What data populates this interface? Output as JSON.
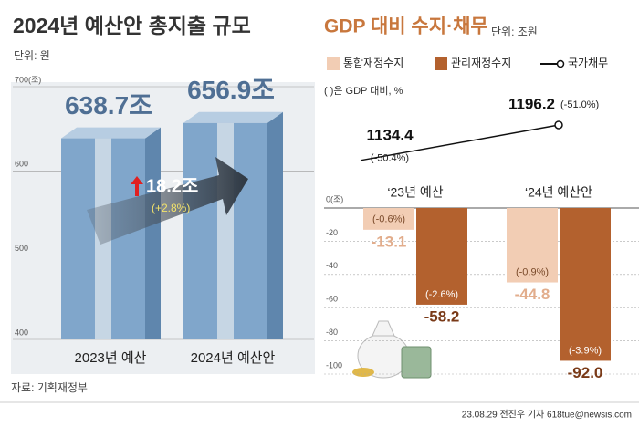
{
  "chart_data": [
    {
      "type": "bar",
      "title": "2024년 예산안 총지출 규모",
      "unit": "단위: 원",
      "categories": [
        "2023년 예산",
        "2024년 예산안"
      ],
      "values": [
        638.7,
        656.9
      ],
      "value_labels": [
        "638.7조",
        "656.9조"
      ],
      "color": "#80a6cb",
      "ylim": [
        400,
        700
      ],
      "yticks": [
        400,
        500,
        600,
        {
          "value": 700,
          "label": "700(조)"
        }
      ],
      "grid": true,
      "annotations": [
        "18.2조",
        "(+2.8%)"
      ],
      "source": "자료: 기획재정부"
    },
    {
      "type": "bar",
      "title": "GDP 대비 수지·채무",
      "unit": "단위: 조원",
      "subtitle": "( )은 GDP 대비, %",
      "categories": [
        "‘23년 예산",
        "‘24년 예산안"
      ],
      "series": [
        {
          "name": "통합재정수지",
          "color": "#f2cdb4",
          "values": [
            -13.1,
            -44.8
          ],
          "value_labels": [
            "-13.1",
            "-44.8"
          ],
          "ratio_labels": [
            "(-0.6%)",
            "(-0.9%)"
          ]
        },
        {
          "name": "관리재정수지",
          "color": "#b3612e",
          "values": [
            -58.2,
            -92.0
          ],
          "value_labels": [
            "-58.2",
            "-92.0"
          ],
          "ratio_labels": [
            "(-2.6%)",
            "(-3.9%)"
          ]
        },
        {
          "name": "국가채무",
          "type": "line",
          "axis": "y2",
          "color": "#111111",
          "values": [
            1134.4,
            1196.2
          ],
          "ratio_labels": [
            "(-50.4%)",
            "(-51.0%)"
          ]
        }
      ],
      "ylim": [
        -100,
        0
      ],
      "yticks": [
        {
          "value": 0,
          "label": "0(조)"
        },
        -20,
        -40,
        -60,
        -80,
        -100
      ],
      "y2lim": [
        1080,
        1220
      ],
      "grid": true
    }
  ],
  "credit": "23.08.29 전진우 기자 618tue@newsis.com"
}
